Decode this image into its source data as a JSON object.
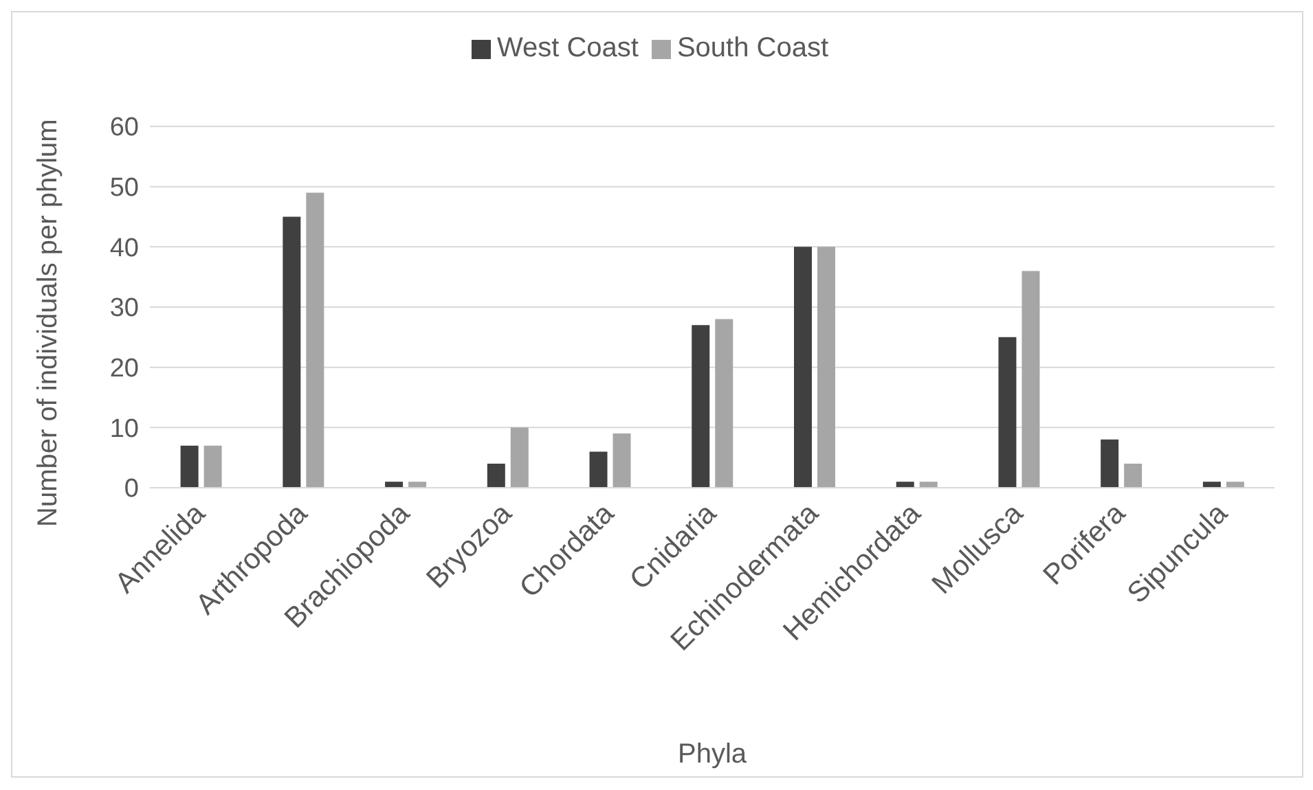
{
  "chart_data": {
    "type": "bar",
    "xlabel": "Phyla",
    "ylabel": "Number of individuals per phylum",
    "categories": [
      "Annelida",
      "Arthropoda",
      "Brachiopoda",
      "Bryozoa",
      "Chordata",
      "Cnidaria",
      "Echinodermata",
      "Hemichordata",
      "Mollusca",
      "Porifera",
      "Sipuncula"
    ],
    "series": [
      {
        "name": "West Coast",
        "color": "#404040",
        "values": [
          7,
          45,
          1,
          4,
          6,
          27,
          40,
          1,
          25,
          8,
          1
        ]
      },
      {
        "name": "South Coast",
        "color": "#a6a6a6",
        "values": [
          7,
          49,
          1,
          10,
          9,
          28,
          40,
          1,
          36,
          4,
          1
        ]
      }
    ],
    "ylim": [
      0,
      60
    ],
    "yticks": [
      0,
      10,
      20,
      30,
      40,
      50,
      60
    ],
    "grid": "y",
    "legend": "top"
  }
}
